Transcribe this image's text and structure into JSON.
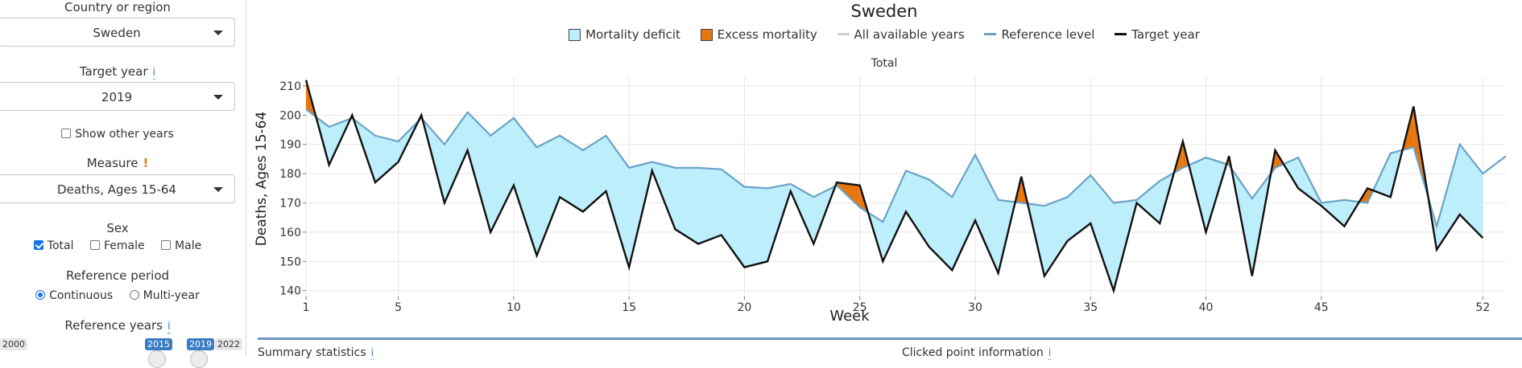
{
  "sidebar": {
    "country_label": "Country or region",
    "country_value": "Sweden",
    "target_year_label": "Target year",
    "target_year_info": "i",
    "target_year_value": "2019",
    "show_other_years": "Show other years",
    "measure_label": "Measure",
    "measure_warn": "!",
    "measure_value": "Deaths, Ages 15-64",
    "sex_label": "Sex",
    "sex_options": [
      "Total",
      "Female",
      "Male"
    ],
    "ref_period_label": "Reference period",
    "ref_period_options": [
      "Continuous",
      "Multi-year"
    ],
    "ref_years_label": "Reference years",
    "ref_years_info": "i",
    "slider_min": "2000",
    "slider_from": "2015",
    "slider_to": "2019",
    "slider_max": "2022"
  },
  "chart_title": "Sweden",
  "legend": {
    "deficit": "Mortality deficit",
    "excess": "Excess mortality",
    "all_years": "All available years",
    "reference": "Reference level",
    "target": "Target year"
  },
  "panel_title": "Total",
  "bottom": {
    "summary": "Summary statistics",
    "clicked": "Clicked point information",
    "info": "i"
  },
  "colors": {
    "deficit_fill": "#bdeefb",
    "excess_fill": "#e8760f",
    "reference_line": "#6aa2c8",
    "target_line": "#111111",
    "all_years_line": "#cccccc"
  },
  "chart_data": {
    "type": "line",
    "xlabel": "Week",
    "ylabel": "Deaths, Ages 15-64",
    "xlim": [
      1,
      53
    ],
    "ylim": [
      138,
      213
    ],
    "xticks": [
      1,
      5,
      10,
      15,
      20,
      25,
      30,
      35,
      40,
      45,
      52
    ],
    "yticks": [
      140,
      150,
      160,
      170,
      180,
      190,
      200,
      210
    ],
    "grid": true,
    "legend_position": "top",
    "series": [
      {
        "name": "Reference level",
        "x": [
          1,
          2,
          3,
          4,
          5,
          6,
          7,
          8,
          9,
          10,
          11,
          12,
          13,
          14,
          15,
          16,
          17,
          18,
          19,
          20,
          21,
          22,
          23,
          24,
          25,
          26,
          27,
          28,
          29,
          30,
          31,
          32,
          33,
          34,
          35,
          36,
          37,
          38,
          39,
          40,
          41,
          42,
          43,
          44,
          45,
          46,
          47,
          48,
          49,
          50,
          51,
          52,
          53
        ],
        "values": [
          202,
          196,
          199,
          193,
          191,
          199,
          190,
          201,
          193,
          199,
          189,
          193,
          188,
          193,
          182,
          184,
          182,
          182,
          181.5,
          175.5,
          175,
          176.5,
          172,
          176,
          168.5,
          163.5,
          181,
          178,
          172,
          186.5,
          171,
          170,
          169,
          172,
          179.5,
          170,
          171,
          177.5,
          182,
          185.5,
          183,
          171.5,
          182,
          185.5,
          170,
          171,
          170,
          187,
          189,
          162,
          190,
          180,
          186
        ]
      },
      {
        "name": "Target year",
        "x": [
          1,
          2,
          3,
          4,
          5,
          6,
          7,
          8,
          9,
          10,
          11,
          12,
          13,
          14,
          15,
          16,
          17,
          18,
          19,
          20,
          21,
          22,
          23,
          24,
          25,
          26,
          27,
          28,
          29,
          30,
          31,
          32,
          33,
          34,
          35,
          36,
          37,
          38,
          39,
          40,
          41,
          42,
          43,
          44,
          45,
          46,
          47,
          48,
          49,
          50,
          51,
          52
        ],
        "values": [
          212,
          183,
          200,
          177,
          184,
          200,
          170,
          188,
          160,
          176,
          152,
          172,
          167,
          174,
          148,
          181,
          161,
          156,
          159,
          148,
          150,
          174,
          156,
          177,
          176,
          150,
          167,
          155,
          147,
          164,
          146,
          179,
          145,
          157,
          163,
          140,
          170,
          163,
          191,
          160,
          186,
          145,
          188,
          175,
          169,
          162,
          175,
          172,
          203,
          154,
          166,
          158
        ]
      }
    ]
  }
}
